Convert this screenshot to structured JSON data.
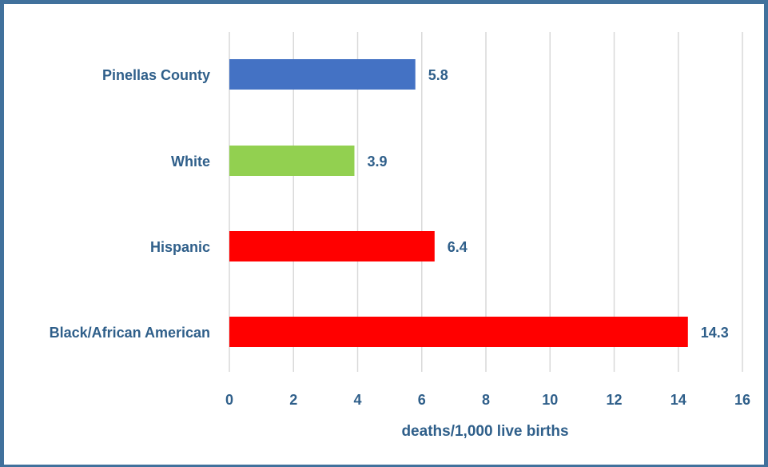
{
  "chart_data": {
    "type": "bar",
    "orientation": "horizontal",
    "categories": [
      "Pinellas County",
      "White",
      "Hispanic",
      "Black/African American"
    ],
    "values": [
      5.8,
      3.9,
      6.4,
      14.3
    ],
    "bar_colors": [
      "#4472c4",
      "#92d050",
      "#ff0000",
      "#ff0000"
    ],
    "data_labels": [
      "5.8",
      "3.9",
      "6.4",
      "14.3"
    ],
    "xlabel": "deaths/1,000 live births",
    "xlim": [
      0,
      16
    ],
    "xticks": [
      "0",
      "2",
      "4",
      "6",
      "8",
      "10",
      "12",
      "14",
      "16"
    ],
    "grid": true,
    "legend": "none"
  },
  "colors": {
    "frame": "#41719c",
    "label_text": "#2f5f8a",
    "gridline": "#d9d9d9"
  }
}
